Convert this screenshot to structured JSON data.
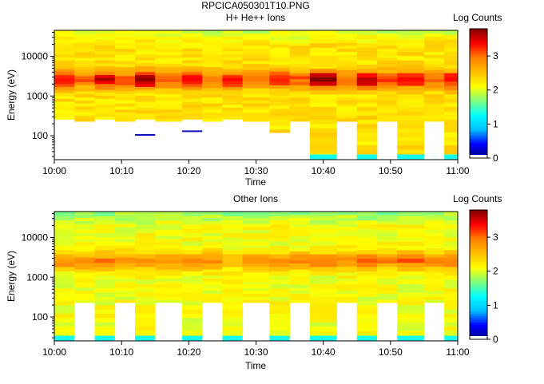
{
  "figure_title": "RPCICA050301T10.PNG",
  "colormap": [
    "#000080",
    "#0000ff",
    "#00bfff",
    "#00ffff",
    "#7fff7f",
    "#ffff00",
    "#ffbf00",
    "#ff7f00",
    "#ff0000",
    "#800000"
  ],
  "chart_data": [
    {
      "type": "heatmap",
      "title": "H+ He++ Ions",
      "xlabel": "Time",
      "ylabel": "Energy (eV)",
      "x_ticks": [
        "10:00",
        "10:10",
        "10:20",
        "10:30",
        "10:40",
        "10:50",
        "11:00"
      ],
      "y_ticks": [
        "100",
        "1000",
        "10000"
      ],
      "y_scale": "log",
      "ylim": [
        25,
        45000
      ],
      "colorbar_label": "Log Counts",
      "colorbar_ticks": [
        "0",
        "1",
        "2",
        "3"
      ],
      "colorbar_range": [
        0,
        3.8
      ],
      "background_level": 2.3,
      "peak_energy": 2600,
      "sweep_blocks": [
        {
          "start": "10:00",
          "end": "10:03",
          "min_energy": 260,
          "peak": 3.4
        },
        {
          "start": "10:06",
          "end": "10:09",
          "min_energy": 260,
          "peak": 3.5
        },
        {
          "start": "10:12",
          "end": "10:15",
          "min_energy": 260,
          "peak": 3.8
        },
        {
          "start": "10:19",
          "end": "10:22",
          "min_energy": 260,
          "peak": 3.5
        },
        {
          "start": "10:25",
          "end": "10:28",
          "min_energy": 260,
          "peak": 3.4
        },
        {
          "start": "10:32",
          "end": "10:35",
          "min_energy": 120,
          "peak": 3.4
        },
        {
          "start": "10:38",
          "end": "10:42",
          "min_energy": 28,
          "peak": 3.8
        },
        {
          "start": "10:45",
          "end": "10:48",
          "min_energy": 28,
          "peak": 3.6
        },
        {
          "start": "10:51",
          "end": "10:55",
          "min_energy": 28,
          "peak": 3.5
        },
        {
          "start": "10:58",
          "end": "11:00",
          "min_energy": 28,
          "peak": 3.5
        }
      ],
      "low_energy_marks": [
        {
          "start": "10:12",
          "end": "10:15",
          "energy": 105
        },
        {
          "start": "10:19",
          "end": "10:22",
          "energy": 130
        }
      ]
    },
    {
      "type": "heatmap",
      "title": "Other Ions",
      "xlabel": "Time",
      "ylabel": "Energy (eV)",
      "x_ticks": [
        "10:00",
        "10:10",
        "10:20",
        "10:30",
        "10:40",
        "10:50",
        "11:00"
      ],
      "y_ticks": [
        "100",
        "1000",
        "10000"
      ],
      "y_scale": "log",
      "ylim": [
        25,
        45000
      ],
      "colorbar_label": "Log Counts",
      "colorbar_ticks": [
        "0",
        "1",
        "2",
        "3"
      ],
      "colorbar_range": [
        0,
        3.8
      ],
      "background_level": 2.1,
      "peak_energy": 2600,
      "sweep_blocks": [
        {
          "start": "10:00",
          "end": "10:03",
          "min_energy": 28,
          "peak": 2.9
        },
        {
          "start": "10:06",
          "end": "10:09",
          "min_energy": 28,
          "peak": 2.9
        },
        {
          "start": "10:12",
          "end": "10:15",
          "min_energy": 28,
          "peak": 2.9
        },
        {
          "start": "10:19",
          "end": "10:22",
          "min_energy": 28,
          "peak": 2.9
        },
        {
          "start": "10:25",
          "end": "10:28",
          "min_energy": 28,
          "peak": 2.4
        },
        {
          "start": "10:32",
          "end": "10:35",
          "min_energy": 28,
          "peak": 2.9
        },
        {
          "start": "10:38",
          "end": "10:42",
          "min_energy": 28,
          "peak": 3.0
        },
        {
          "start": "10:45",
          "end": "10:48",
          "min_energy": 28,
          "peak": 3.0
        },
        {
          "start": "10:51",
          "end": "10:55",
          "min_energy": 28,
          "peak": 3.0
        },
        {
          "start": "10:58",
          "end": "11:00",
          "min_energy": 28,
          "peak": 3.0
        }
      ],
      "low_energy_marks": []
    }
  ]
}
